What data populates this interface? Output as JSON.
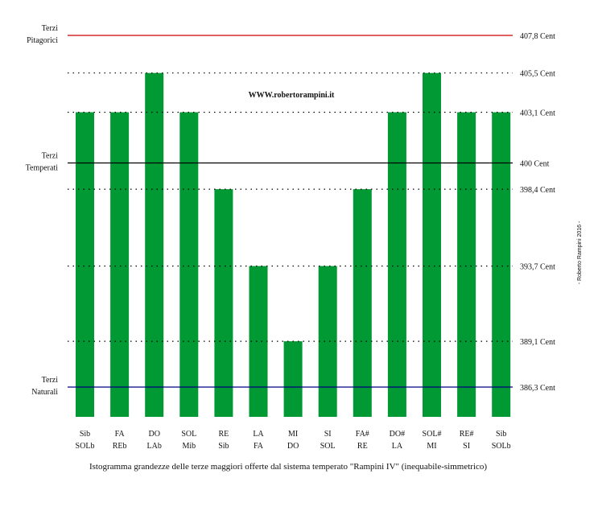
{
  "chart_data": {
    "type": "bar",
    "watermark": "WWW.robertorampini.it",
    "caption": "Istogramma grandezze delle terze maggiori offerte dal sistema temperato \"Rampini IV\" (inequabile-simmetrico)",
    "credit": "- Roberto Rampini 2016 -",
    "ylim": [
      384,
      409
    ],
    "categories": [
      [
        "Sib",
        "SOLb"
      ],
      [
        "FA",
        "REb"
      ],
      [
        "DO",
        "LAb"
      ],
      [
        "SOL",
        "Mib"
      ],
      [
        "RE",
        "Sib"
      ],
      [
        "LA",
        "FA"
      ],
      [
        "MI",
        "DO"
      ],
      [
        "SI",
        "SOL"
      ],
      [
        "FA#",
        "RE"
      ],
      [
        "DO#",
        "LA"
      ],
      [
        "SOL#",
        "MI"
      ],
      [
        "RE#",
        "SI"
      ],
      [
        "Sib",
        "SOLb"
      ]
    ],
    "values": [
      403.1,
      403.1,
      405.5,
      403.1,
      398.4,
      393.7,
      389.1,
      393.7,
      398.4,
      403.1,
      405.5,
      403.1,
      403.1
    ],
    "bar_color": "#009933",
    "reference_lines": [
      {
        "value": 407.8,
        "label": "407,8 Cent",
        "style": "solid",
        "color": "#cc0000",
        "left_label": [
          "Terzi",
          "Pitagorici"
        ]
      },
      {
        "value": 405.5,
        "label": "405,5 Cent",
        "style": "dotted",
        "color": "#000000"
      },
      {
        "value": 403.1,
        "label": "403,1 Cent",
        "style": "dotted",
        "color": "#000000"
      },
      {
        "value": 400.0,
        "label": "400 Cent",
        "style": "solid",
        "color": "#000000",
        "left_label": [
          "Terzi",
          "Temperati"
        ]
      },
      {
        "value": 398.4,
        "label": "398,4 Cent",
        "style": "dotted",
        "color": "#000000"
      },
      {
        "value": 393.7,
        "label": "393,7 Cent",
        "style": "dotted",
        "color": "#000000"
      },
      {
        "value": 389.1,
        "label": "389,1 Cent",
        "style": "dotted",
        "color": "#000000"
      },
      {
        "value": 386.3,
        "label": "386,3 Cent",
        "style": "solid",
        "color": "#000080",
        "left_label": [
          "Terzi",
          "Naturali"
        ]
      }
    ]
  }
}
